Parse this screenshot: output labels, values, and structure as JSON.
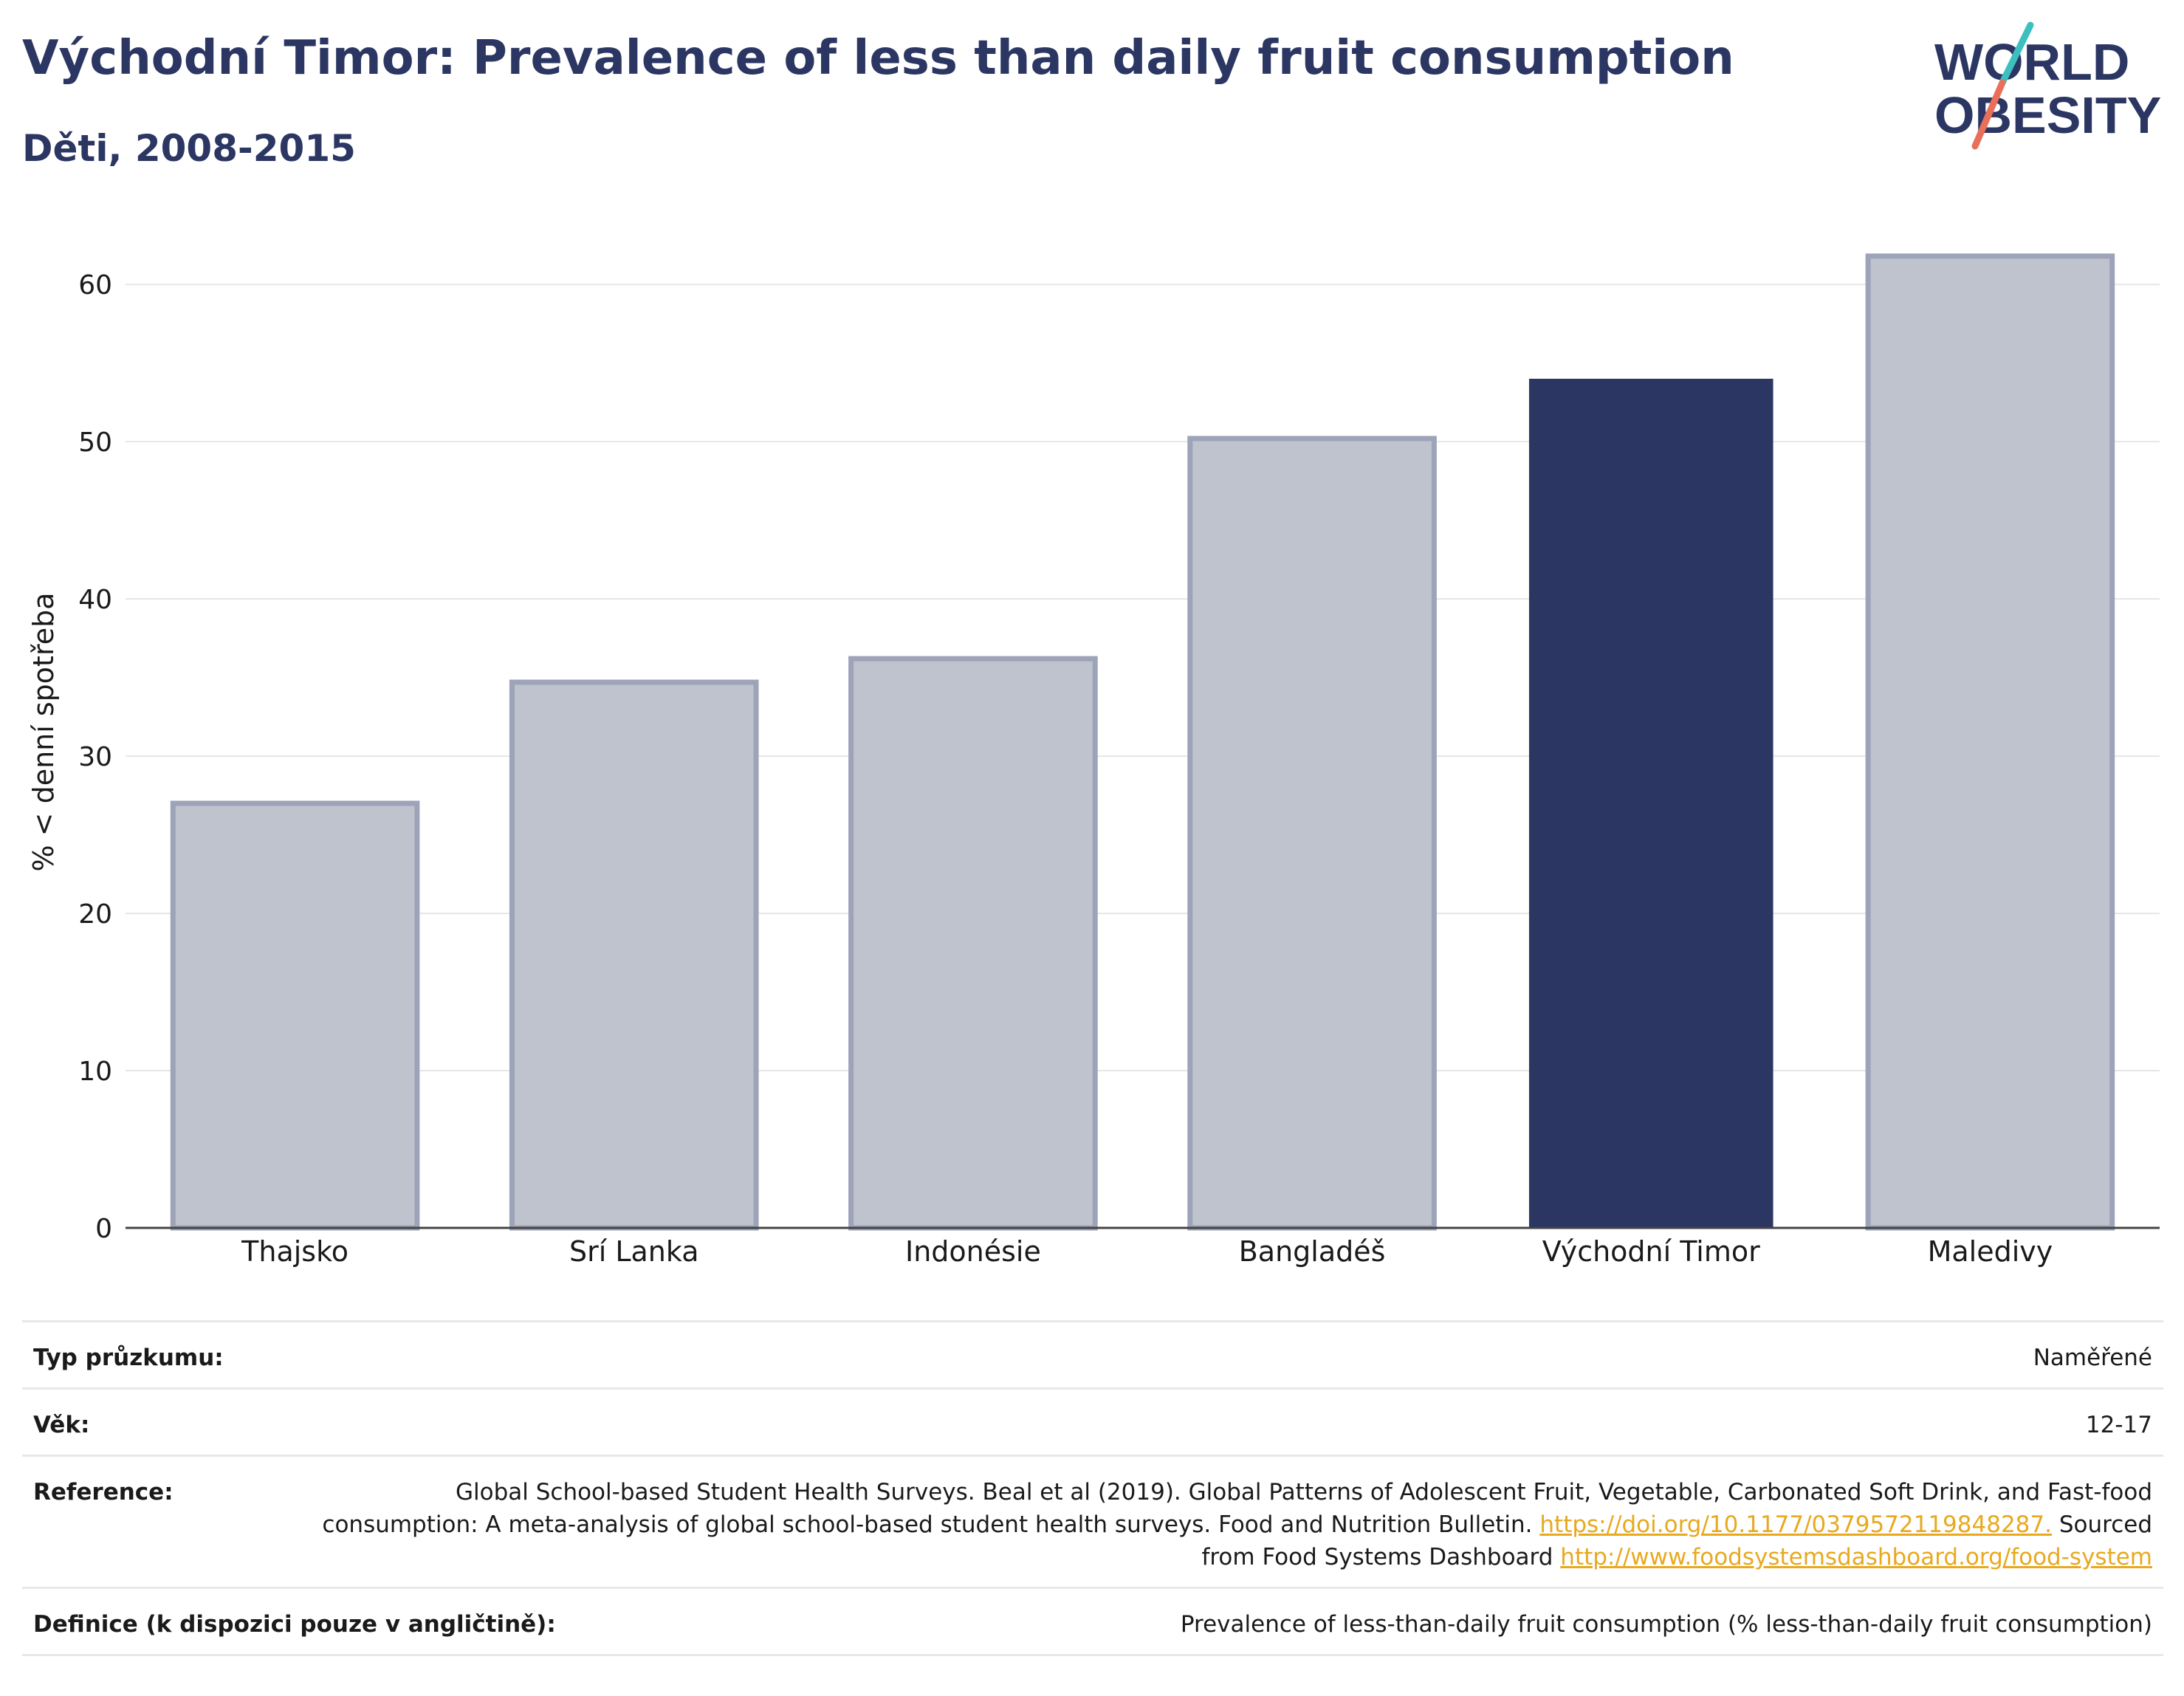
{
  "header": {
    "title": "Východní Timor: Prevalence of less than daily fruit consumption",
    "subtitle": "Děti, 2008-2015"
  },
  "logo": {
    "line1": "WORLD",
    "line2": "OBESITY",
    "accent_colors": [
      "#3cbfbf",
      "#e8705a"
    ]
  },
  "chart_data": {
    "type": "bar",
    "categories": [
      "Thajsko",
      "Srí Lanka",
      "Indonésie",
      "Bangladéš",
      "Východní Timor",
      "Maledivy"
    ],
    "values": [
      27.0,
      34.7,
      36.2,
      50.2,
      54.0,
      61.8
    ],
    "highlight": "Východní Timor",
    "ylabel": "% < denní spotřeba",
    "xlabel": "",
    "ylim": [
      0,
      64
    ],
    "yticks": [
      0,
      10,
      20,
      30,
      40,
      50,
      60
    ],
    "grid": true,
    "colors": {
      "highlight": "#2b3663",
      "other_fill": "#bfc3ce",
      "other_stroke": "#9da3b8"
    }
  },
  "meta": [
    {
      "label": "Typ průzkumu:",
      "value": "Naměřené"
    },
    {
      "label": "Věk:",
      "value": "12-17"
    },
    {
      "label": "Reference:",
      "text1": "Global School-based Student Health Surveys. Beal et al (2019). Global Patterns of Adolescent Fruit, Vegetable, Carbonated Soft Drink, and Fast-food consumption: A meta-analysis of global school-based student health surveys. Food and Nutrition Bulletin.",
      "link1": "https://doi.org/10.1177/0379572119848287.",
      "text2": "Sourced from Food Systems Dashboard",
      "link2": "http://www.foodsystemsdashboard.org/food-system"
    },
    {
      "label": "Definice (k dispozici pouze v angličtině):",
      "value": "Prevalence of less-than-daily fruit consumption (% less-than-daily fruit consumption)"
    }
  ]
}
